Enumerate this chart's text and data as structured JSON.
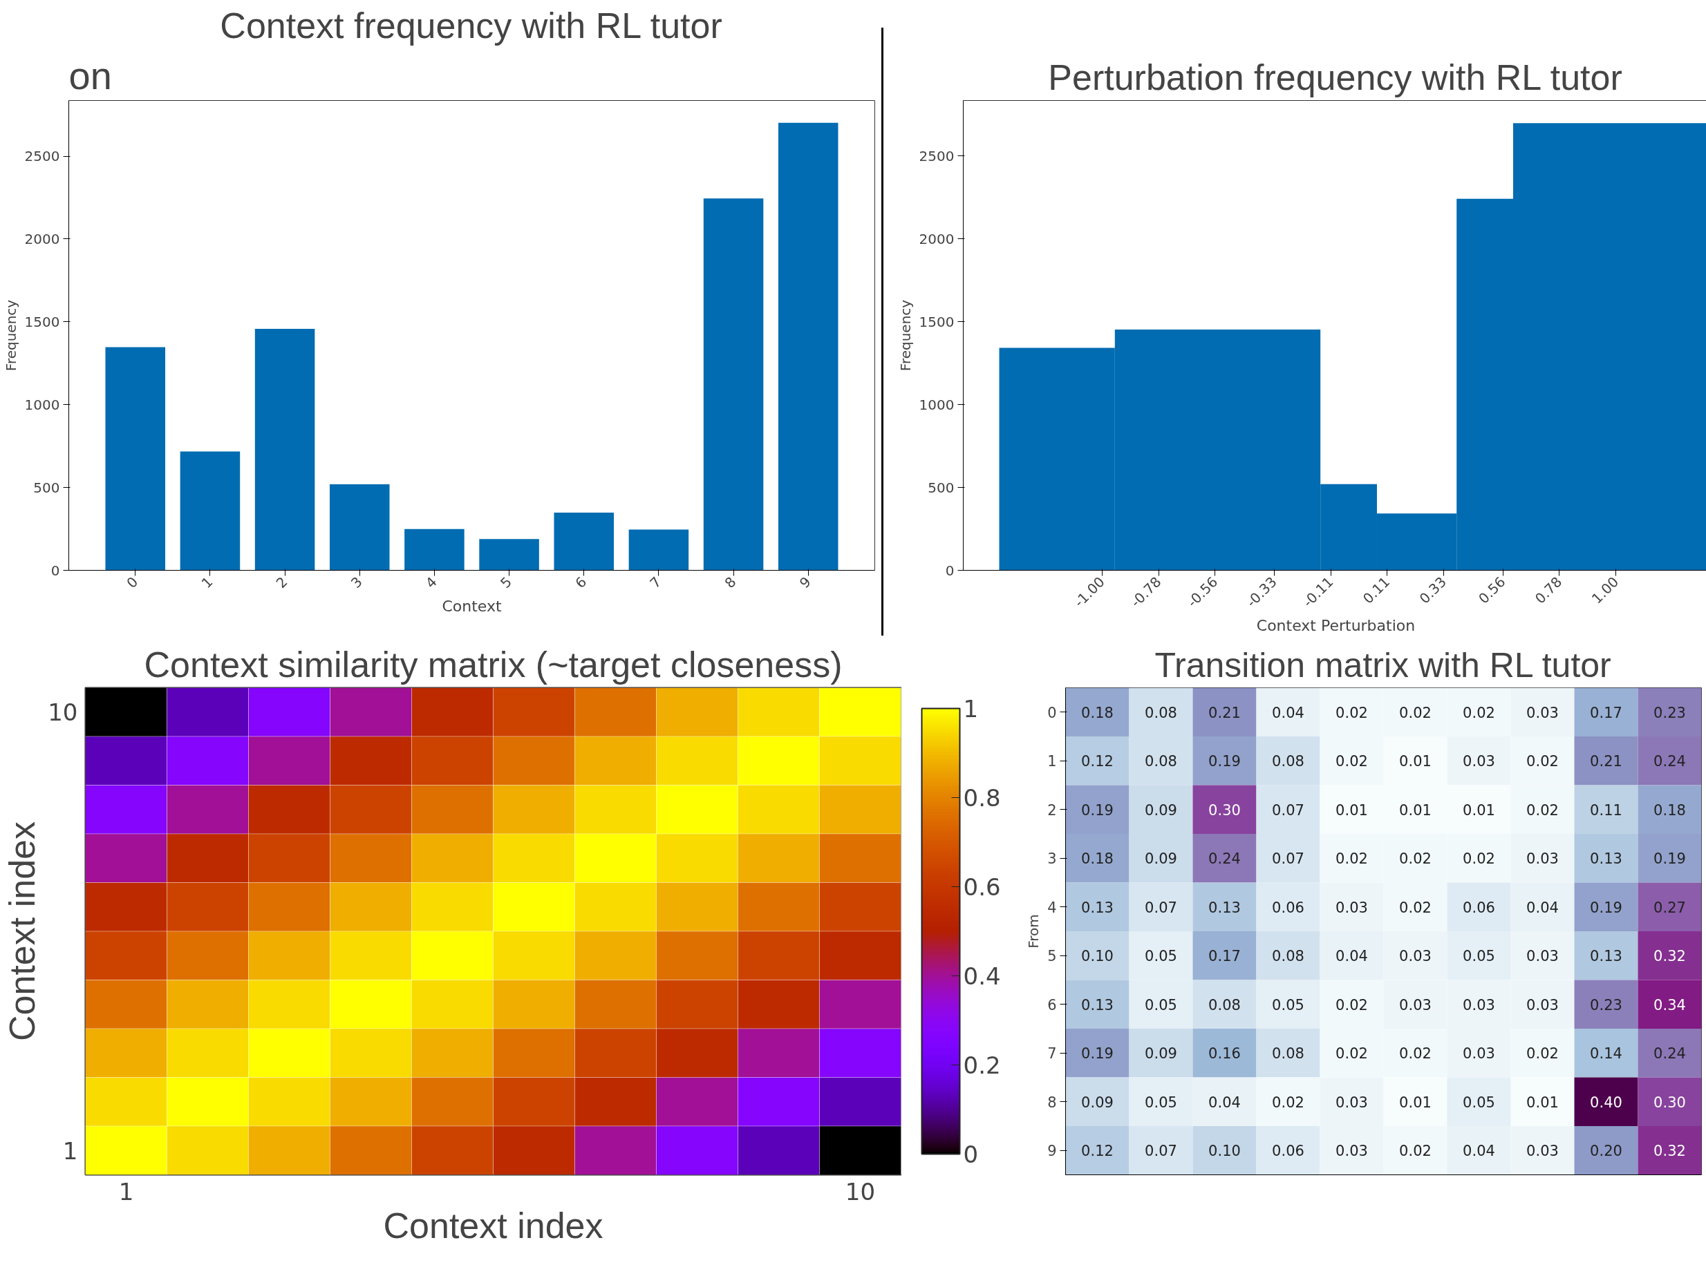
{
  "chart_data": [
    {
      "type": "bar",
      "title": "Context frequency with RL tutor",
      "xlabel": "Context",
      "ylabel": "Frequency",
      "annotations": [
        "on"
      ],
      "categories": [
        "0",
        "1",
        "2",
        "3",
        "4",
        "5",
        "6",
        "7",
        "8",
        "9"
      ],
      "values": [
        1347,
        717,
        1458,
        519,
        249,
        189,
        348,
        246,
        2245,
        2701
      ],
      "color": "#016cb1",
      "ylim": [
        0,
        2836
      ],
      "yticks": [
        0,
        500,
        1000,
        1500,
        2000,
        2500
      ]
    },
    {
      "type": "histogram",
      "title": "Perturbation frequency with RL tutor",
      "xlabel": "Context Perturbation",
      "ylabel": "Frequency",
      "bins": [
        -1.4,
        -0.95,
        -0.15,
        0.07,
        0.38,
        0.6,
        1.36
      ],
      "values": [
        1342,
        1453,
        520,
        343,
        2242,
        2698
      ],
      "color": "#016cb1",
      "xlim": [
        -1.54,
        1.36
      ],
      "xticks": [
        {
          "value": -1,
          "label": "-1.00"
        },
        {
          "value": -0.78,
          "label": "-0.78"
        },
        {
          "value": -0.56,
          "label": "-0.56"
        },
        {
          "value": -0.33,
          "label": "-0.33"
        },
        {
          "value": -0.11,
          "label": "-0.11"
        },
        {
          "value": 0.11,
          "label": "0.11"
        },
        {
          "value": 0.33,
          "label": "0.33"
        },
        {
          "value": 0.56,
          "label": "0.56"
        },
        {
          "value": 0.78,
          "label": "0.78"
        },
        {
          "value": 1,
          "label": "1.00"
        }
      ],
      "ylim": [
        0,
        2835
      ],
      "yticks": [
        0,
        500,
        1000,
        1500,
        2000,
        2500
      ]
    },
    {
      "type": "heatmap",
      "title": "Context similarity matrix (~target closeness)",
      "xlabel": "Context index",
      "ylabel": "Context index",
      "categories": [
        "1",
        null,
        null,
        null,
        null,
        null,
        null,
        null,
        null,
        "10"
      ],
      "y_categories": [
        "10",
        null,
        null,
        null,
        null,
        null,
        null,
        null,
        null,
        "1"
      ],
      "cells": [
        [
          0,
          0.13,
          0.27,
          0.4,
          0.55,
          0.64,
          0.76,
          0.88,
          0.95,
          1
        ],
        [
          0.13,
          0.27,
          0.4,
          0.55,
          0.64,
          0.76,
          0.88,
          0.95,
          1,
          0.95
        ],
        [
          0.27,
          0.4,
          0.55,
          0.64,
          0.76,
          0.88,
          0.95,
          1,
          0.95,
          0.88
        ],
        [
          0.4,
          0.55,
          0.64,
          0.76,
          0.88,
          0.95,
          1,
          0.95,
          0.88,
          0.76
        ],
        [
          0.55,
          0.64,
          0.76,
          0.88,
          0.95,
          1,
          0.95,
          0.88,
          0.76,
          0.64
        ],
        [
          0.64,
          0.76,
          0.88,
          0.95,
          1,
          0.95,
          0.88,
          0.76,
          0.64,
          0.55
        ],
        [
          0.76,
          0.88,
          0.95,
          1,
          0.95,
          0.88,
          0.76,
          0.64,
          0.55,
          0.4
        ],
        [
          0.88,
          0.95,
          1,
          0.95,
          0.88,
          0.76,
          0.64,
          0.55,
          0.4,
          0.27
        ],
        [
          0.95,
          1,
          0.95,
          0.88,
          0.76,
          0.64,
          0.55,
          0.4,
          0.27,
          0.13
        ],
        [
          1,
          0.95,
          0.88,
          0.76,
          0.64,
          0.55,
          0.4,
          0.27,
          0.13,
          0
        ]
      ],
      "clim": [
        0,
        1
      ],
      "cticks": [
        0,
        0.2,
        0.4,
        0.6,
        0.8,
        1
      ]
    },
    {
      "type": "heatmap",
      "title": "Transition matrix with RL tutor",
      "ylabel": "From",
      "tick_labels": "y",
      "categories": [
        null,
        null,
        null,
        null,
        null,
        null,
        null,
        null,
        null,
        null
      ],
      "y_categories": [
        "0",
        "1",
        "2",
        "3",
        "4",
        "5",
        "6",
        "7",
        "8",
        "9"
      ],
      "cells": [
        [
          0.18,
          0.08,
          0.21,
          0.04,
          0.02,
          0.02,
          0.02,
          0.03,
          0.17,
          0.23
        ],
        [
          0.12,
          0.08,
          0.19,
          0.08,
          0.02,
          0.01,
          0.03,
          0.02,
          0.21,
          0.24
        ],
        [
          0.19,
          0.09,
          0.3,
          0.07,
          0.01,
          0.01,
          0.01,
          0.02,
          0.11,
          0.18
        ],
        [
          0.18,
          0.09,
          0.24,
          0.07,
          0.02,
          0.02,
          0.02,
          0.03,
          0.13,
          0.19
        ],
        [
          0.13,
          0.07,
          0.13,
          0.06,
          0.03,
          0.02,
          0.06,
          0.04,
          0.19,
          0.27
        ],
        [
          0.1,
          0.05,
          0.17,
          0.08,
          0.04,
          0.03,
          0.05,
          0.03,
          0.13,
          0.32
        ],
        [
          0.13,
          0.05,
          0.08,
          0.05,
          0.02,
          0.03,
          0.03,
          0.03,
          0.23,
          0.34
        ],
        [
          0.19,
          0.09,
          0.16,
          0.08,
          0.02,
          0.02,
          0.03,
          0.02,
          0.14,
          0.24
        ],
        [
          0.09,
          0.05,
          0.04,
          0.02,
          0.03,
          0.01,
          0.05,
          0.01,
          0.4,
          0.3
        ],
        [
          0.12,
          0.07,
          0.1,
          0.06,
          0.03,
          0.02,
          0.04,
          0.03,
          0.2,
          0.32
        ]
      ],
      "cell_labels": [
        [
          "0.18",
          "0.08",
          "0.21",
          "0.04",
          "0.02",
          "0.02",
          "0.02",
          "0.03",
          "0.17",
          "0.23"
        ],
        [
          "0.12",
          "0.08",
          "0.19",
          "0.08",
          "0.02",
          "0.01",
          "0.03",
          "0.02",
          "0.21",
          "0.24"
        ],
        [
          "0.19",
          "0.09",
          "0.30",
          "0.07",
          "0.01",
          "0.01",
          "0.01",
          "0.02",
          "0.11",
          "0.18"
        ],
        [
          "0.18",
          "0.09",
          "0.24",
          "0.07",
          "0.02",
          "0.02",
          "0.02",
          "0.03",
          "0.13",
          "0.19"
        ],
        [
          "0.13",
          "0.07",
          "0.13",
          "0.06",
          "0.03",
          "0.02",
          "0.06",
          "0.04",
          "0.19",
          "0.27"
        ],
        [
          "0.10",
          "0.05",
          "0.17",
          "0.08",
          "0.04",
          "0.03",
          "0.05",
          "0.03",
          "0.13",
          "0.32"
        ],
        [
          "0.13",
          "0.05",
          "0.08",
          "0.05",
          "0.02",
          "0.03",
          "0.03",
          "0.03",
          "0.23",
          "0.34"
        ],
        [
          "0.19",
          "0.09",
          "0.16",
          "0.08",
          "0.02",
          "0.02",
          "0.03",
          "0.02",
          "0.14",
          "0.24"
        ],
        [
          "0.09",
          "0.05",
          "0.04",
          "0.02",
          "0.03",
          "0.01",
          "0.05",
          "0.01",
          "0.40",
          "0.30"
        ],
        [
          "0.12",
          "0.07",
          "0.10",
          "0.06",
          "0.03",
          "0.02",
          "0.04",
          "0.03",
          "0.20",
          "0.32"
        ]
      ]
    }
  ]
}
